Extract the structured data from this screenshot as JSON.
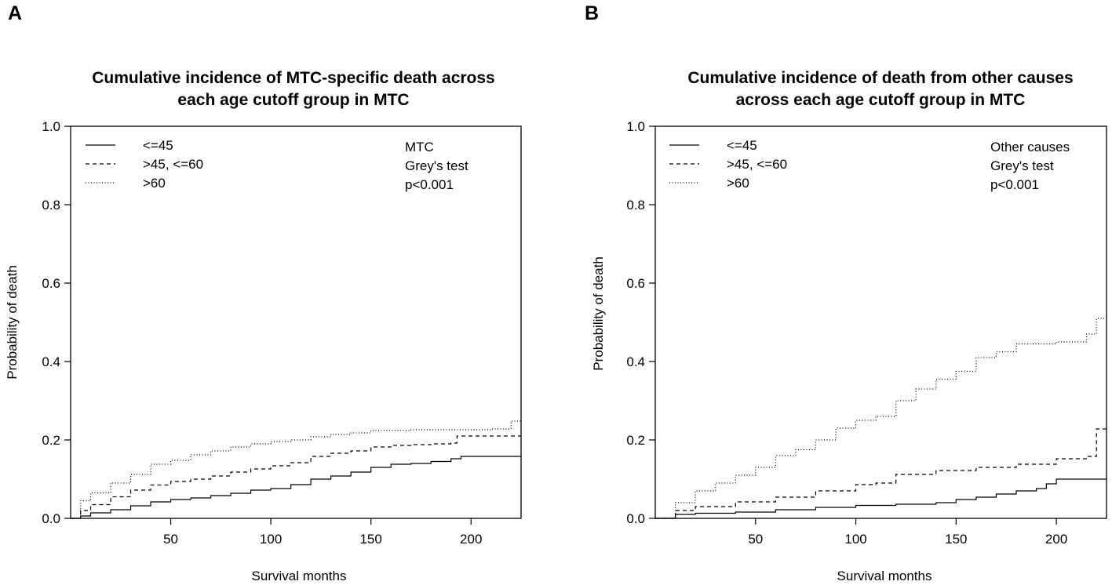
{
  "chart_data": [
    {
      "panel": "A",
      "type": "line",
      "title": [
        "Cumulative incidence of MTC-specific death across",
        "each age cutoff group in MTC"
      ],
      "xlabel": "Survival months",
      "ylabel": "Probability of death",
      "xlim": [
        0,
        225
      ],
      "ylim": [
        0,
        1.0
      ],
      "xticks": [
        50,
        100,
        150,
        200
      ],
      "yticks": [
        0.0,
        0.2,
        0.4,
        0.6,
        0.8,
        1.0
      ],
      "ytick_labels": [
        "0.0",
        "0.2",
        "0.4",
        "0.6",
        "0.8",
        "1.0"
      ],
      "legend": [
        "<=45",
        ">45, <=60",
        ">60"
      ],
      "annotation": [
        "MTC",
        "Grey's test",
        "p<0.001"
      ],
      "series": [
        {
          "name": "<=45",
          "style": "solid",
          "x": [
            0,
            5,
            10,
            20,
            30,
            40,
            50,
            60,
            70,
            80,
            90,
            100,
            110,
            120,
            130,
            140,
            150,
            160,
            170,
            180,
            190,
            195,
            225
          ],
          "y": [
            0,
            0.006,
            0.014,
            0.022,
            0.032,
            0.042,
            0.048,
            0.052,
            0.058,
            0.064,
            0.072,
            0.076,
            0.086,
            0.1,
            0.108,
            0.118,
            0.13,
            0.138,
            0.14,
            0.145,
            0.152,
            0.158,
            0.158
          ]
        },
        {
          "name": ">45, <=60",
          "style": "dashed",
          "x": [
            0,
            5,
            10,
            20,
            30,
            40,
            50,
            60,
            70,
            80,
            90,
            100,
            110,
            120,
            130,
            140,
            150,
            160,
            170,
            180,
            190,
            193,
            225
          ],
          "y": [
            0,
            0.02,
            0.035,
            0.055,
            0.072,
            0.085,
            0.094,
            0.1,
            0.108,
            0.118,
            0.126,
            0.134,
            0.142,
            0.158,
            0.166,
            0.172,
            0.182,
            0.186,
            0.188,
            0.19,
            0.192,
            0.21,
            0.212
          ]
        },
        {
          "name": ">60",
          "style": "dotted",
          "x": [
            0,
            5,
            10,
            20,
            30,
            40,
            50,
            60,
            70,
            80,
            90,
            100,
            110,
            120,
            130,
            140,
            150,
            160,
            170,
            180,
            190,
            200,
            210,
            220,
            225
          ],
          "y": [
            0,
            0.045,
            0.065,
            0.09,
            0.112,
            0.138,
            0.148,
            0.162,
            0.172,
            0.182,
            0.19,
            0.196,
            0.2,
            0.208,
            0.214,
            0.218,
            0.224,
            0.224,
            0.226,
            0.226,
            0.226,
            0.226,
            0.228,
            0.248,
            0.25
          ]
        }
      ]
    },
    {
      "panel": "B",
      "type": "line",
      "title": [
        "Cumulative incidence of death from other causes",
        "across each age cutoff group in MTC"
      ],
      "xlabel": "Survival months",
      "ylabel": "Probability of death",
      "xlim": [
        0,
        225
      ],
      "ylim": [
        0,
        1.0
      ],
      "xticks": [
        50,
        100,
        150,
        200
      ],
      "yticks": [
        0.0,
        0.2,
        0.4,
        0.6,
        0.8,
        1.0
      ],
      "ytick_labels": [
        "0.0",
        "0.2",
        "0.4",
        "0.6",
        "0.8",
        "1.0"
      ],
      "legend": [
        "<=45",
        ">45, <=60",
        ">60"
      ],
      "annotation": [
        "Other causes",
        "Grey's test",
        "p<0.001"
      ],
      "series": [
        {
          "name": "<=45",
          "style": "solid",
          "x": [
            0,
            10,
            20,
            40,
            60,
            80,
            100,
            120,
            140,
            150,
            160,
            170,
            180,
            190,
            195,
            200,
            225
          ],
          "y": [
            0,
            0.01,
            0.013,
            0.016,
            0.022,
            0.028,
            0.033,
            0.036,
            0.04,
            0.048,
            0.054,
            0.062,
            0.07,
            0.076,
            0.088,
            0.1,
            0.1
          ]
        },
        {
          "name": ">45, <=60",
          "style": "dashed",
          "x": [
            0,
            10,
            20,
            40,
            60,
            80,
            100,
            110,
            120,
            140,
            160,
            180,
            200,
            215,
            220,
            225
          ],
          "y": [
            0,
            0.02,
            0.03,
            0.042,
            0.054,
            0.07,
            0.086,
            0.09,
            0.112,
            0.122,
            0.13,
            0.138,
            0.152,
            0.158,
            0.228,
            0.23
          ]
        },
        {
          "name": ">60",
          "style": "dotted",
          "x": [
            0,
            10,
            20,
            30,
            40,
            50,
            60,
            70,
            80,
            90,
            100,
            110,
            120,
            130,
            140,
            150,
            160,
            170,
            180,
            190,
            200,
            210,
            215,
            220,
            225
          ],
          "y": [
            0,
            0.04,
            0.07,
            0.09,
            0.11,
            0.13,
            0.16,
            0.175,
            0.2,
            0.23,
            0.25,
            0.26,
            0.3,
            0.33,
            0.355,
            0.375,
            0.41,
            0.425,
            0.445,
            0.445,
            0.45,
            0.45,
            0.47,
            0.51,
            0.52
          ]
        }
      ]
    }
  ]
}
